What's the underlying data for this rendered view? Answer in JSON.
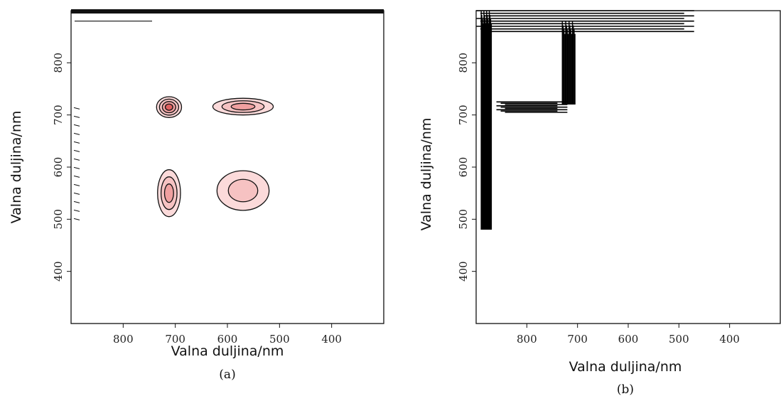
{
  "chart_data": [
    {
      "type": "contour",
      "panel_label": "(a)",
      "xlabel": "Valna duljina/nm",
      "ylabel": "Valna duljina/nm",
      "xlim": [
        900,
        300
      ],
      "ylim": [
        900,
        300
      ],
      "x_ticks": [
        "800",
        "700",
        "600",
        "500",
        "400"
      ],
      "y_ticks": [
        "400",
        "500",
        "600",
        "700",
        "800"
      ],
      "grid": false,
      "fill_colors": [
        "#fbdada",
        "#f6c2c2",
        "#f0a0a0",
        "#e06060",
        "#c83030"
      ],
      "blobs": [
        {
          "label": "peak-710-550",
          "cx": 712,
          "cy": 550,
          "rx": 22,
          "ry": 45,
          "levels": 3
        },
        {
          "label": "peak-550-550",
          "cx": 570,
          "cy": 555,
          "rx": 50,
          "ry": 38,
          "levels": 2
        },
        {
          "label": "peak-710-715",
          "cx": 712,
          "cy": 715,
          "rx": 24,
          "ry": 20,
          "levels": 4
        },
        {
          "label": "peak-550-715",
          "cx": 570,
          "cy": 716,
          "rx": 58,
          "ry": 16,
          "levels": 3
        }
      ],
      "corner_region": {
        "x_from": 900,
        "x_to": 720,
        "y_from": 725,
        "y_to": 900
      }
    },
    {
      "type": "contour",
      "panel_label": "(b)",
      "xlabel": "Valna duljina/nm",
      "ylabel": "Valna duljina/nm",
      "xlim": [
        900,
        300
      ],
      "ylim": [
        900,
        300
      ],
      "x_ticks": [
        "800",
        "700",
        "600",
        "500",
        "400"
      ],
      "y_ticks": [
        "400",
        "500",
        "600",
        "700",
        "800"
      ],
      "grid": false,
      "color": "#000000",
      "ridges": [
        {
          "label": "vertical-ridge-left",
          "x": [
            890,
            870
          ],
          "y": [
            480,
            900
          ]
        },
        {
          "label": "horizontal-ridge-710",
          "x": [
            860,
            720
          ],
          "y": [
            705,
            725
          ]
        },
        {
          "label": "vertical-ridge-710",
          "x": [
            730,
            705
          ],
          "y": [
            720,
            880
          ]
        },
        {
          "label": "bottom-band",
          "x": [
            900,
            470
          ],
          "y": [
            860,
            900
          ]
        }
      ]
    }
  ]
}
